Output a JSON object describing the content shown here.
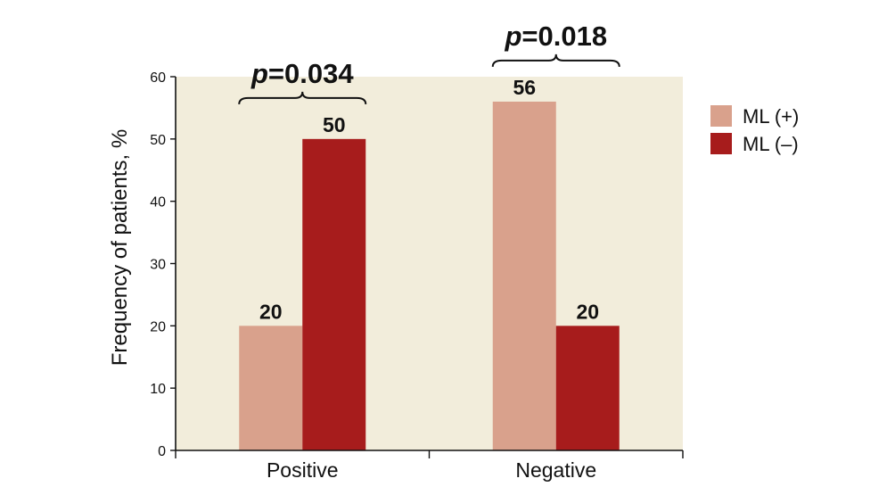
{
  "chart_data": {
    "type": "bar",
    "title": "",
    "xlabel": "",
    "ylabel": "Frequency of patients, %",
    "ylim": [
      0,
      60
    ],
    "yticks": [
      0,
      10,
      20,
      30,
      40,
      50,
      60
    ],
    "categories": [
      "Positive",
      "Negative"
    ],
    "series": [
      {
        "name": "ML (+)",
        "values": [
          20,
          56
        ],
        "color": "#d9a18c"
      },
      {
        "name": "ML (–)",
        "values": [
          50,
          20
        ],
        "color": "#a71c1c"
      }
    ],
    "data_labels": [
      [
        "20",
        "50"
      ],
      [
        "56",
        "20"
      ]
    ],
    "annotations": [
      {
        "category": "Positive",
        "p_symbol": "p",
        "text": "=0.034"
      },
      {
        "category": "Negative",
        "p_symbol": "p",
        "text": "=0.018"
      }
    ],
    "legend_position": "right",
    "grid": false,
    "plot_background": "#f2eddb",
    "axis_color": "#111111"
  }
}
